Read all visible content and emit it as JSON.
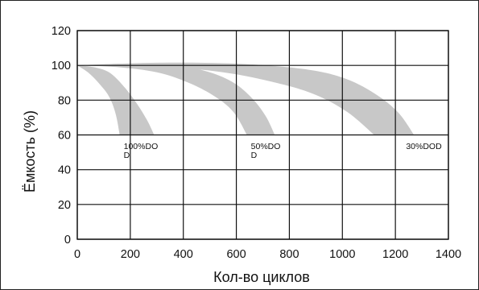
{
  "chart_data": {
    "type": "area",
    "xlabel": "Кол-во циклов",
    "ylabel": "Ёмкость (%)",
    "xlim": [
      0,
      1400
    ],
    "ylim": [
      0,
      120
    ],
    "x_ticks": [
      "0",
      "200",
      "400",
      "600",
      "800",
      "1000",
      "1200",
      "1400"
    ],
    "y_ticks": [
      "0",
      "20",
      "40",
      "60",
      "80",
      "100",
      "120"
    ],
    "grid": true,
    "band_color": "#c8c8c8",
    "series": [
      {
        "name": "100%DOD",
        "label_lines": [
          "100%DO",
          "D"
        ],
        "upper": [
          [
            0,
            100
          ],
          [
            60,
            99
          ],
          [
            120,
            96
          ],
          [
            175,
            88
          ],
          [
            225,
            78
          ],
          [
            265,
            68
          ],
          [
            290,
            60
          ]
        ],
        "lower": [
          [
            0,
            100
          ],
          [
            40,
            96
          ],
          [
            80,
            90
          ],
          [
            120,
            82
          ],
          [
            145,
            72
          ],
          [
            160,
            60
          ]
        ]
      },
      {
        "name": "50%DOD",
        "label_lines": [
          "50%DO",
          "D"
        ],
        "upper": [
          [
            0,
            100
          ],
          [
            200,
            101
          ],
          [
            400,
            99
          ],
          [
            500,
            96
          ],
          [
            590,
            90
          ],
          [
            660,
            81
          ],
          [
            710,
            71
          ],
          [
            745,
            60
          ]
        ],
        "lower": [
          [
            0,
            100
          ],
          [
            150,
            99
          ],
          [
            300,
            96
          ],
          [
            420,
            90
          ],
          [
            520,
            82
          ],
          [
            590,
            73
          ],
          [
            640,
            60
          ]
        ]
      },
      {
        "name": "30%DOD",
        "label_lines": [
          "30%DOD"
        ],
        "upper": [
          [
            0,
            100
          ],
          [
            300,
            101.5
          ],
          [
            600,
            101
          ],
          [
            850,
            98
          ],
          [
            1000,
            93
          ],
          [
            1120,
            84
          ],
          [
            1210,
            73
          ],
          [
            1270,
            60
          ]
        ],
        "lower": [
          [
            0,
            100
          ],
          [
            300,
            99.5
          ],
          [
            550,
            96
          ],
          [
            750,
            90
          ],
          [
            900,
            83
          ],
          [
            1020,
            73
          ],
          [
            1120,
            60
          ]
        ]
      }
    ]
  }
}
